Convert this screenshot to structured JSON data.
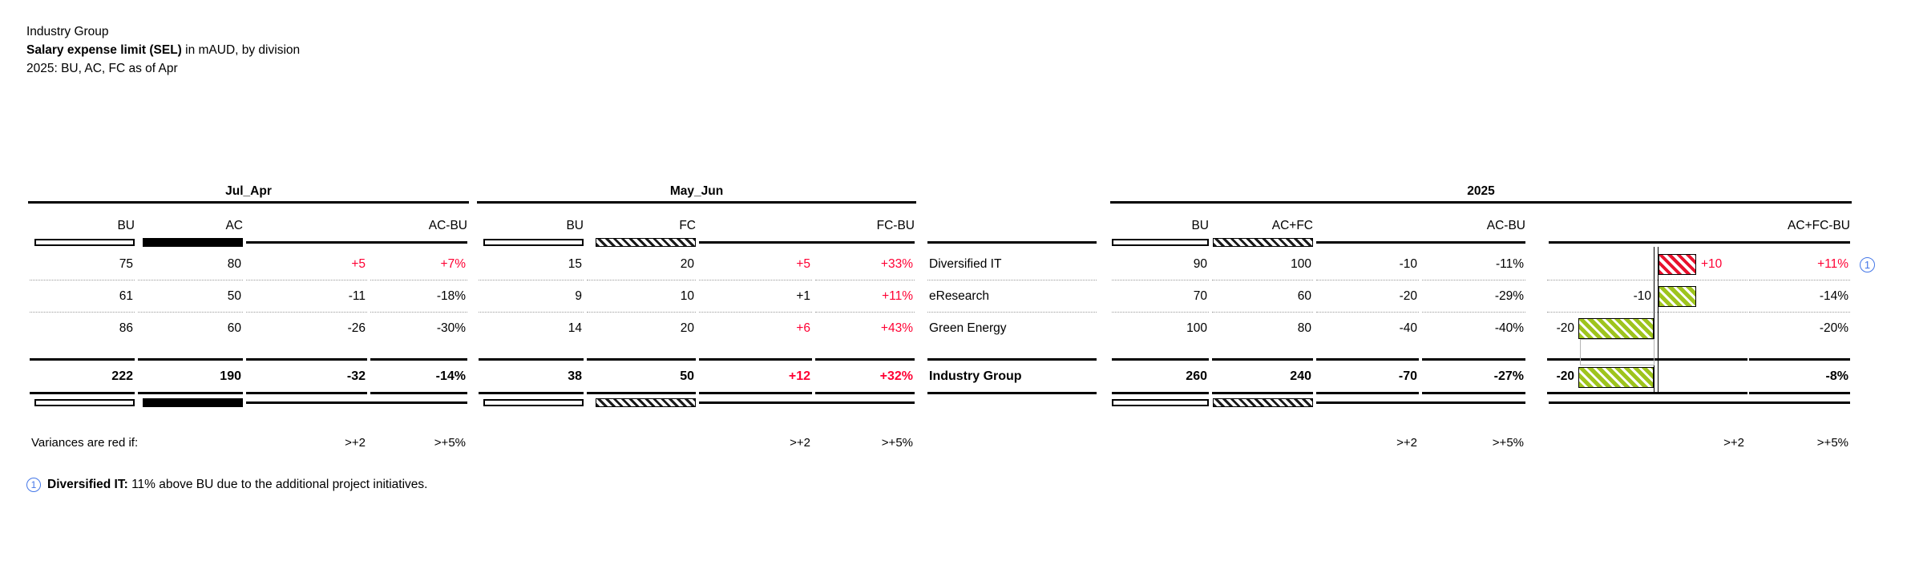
{
  "title": {
    "line1": "Industry Group",
    "line2_bold": "Salary expense limit (SEL)",
    "line2_rest": " in mAUD, by division",
    "line3": "2025: BU, AC, FC as of Apr"
  },
  "header": {
    "jul_apr": {
      "group": "Jul_Apr",
      "bu": "BU",
      "ac": "AC",
      "var": "AC-BU"
    },
    "may_jun": {
      "group": "May_Jun",
      "bu": "BU",
      "fc": "FC",
      "var": "FC-BU"
    },
    "year": {
      "group": "2025",
      "bu": "BU",
      "acfc": "AC+FC",
      "var_abs": "AC-BU",
      "var_chart": "AC+FC-BU"
    }
  },
  "rows": [
    {
      "division": "Diversified IT",
      "ja": {
        "bu": "75",
        "ac": "80",
        "var": "+5",
        "pct": "+7%"
      },
      "mj": {
        "bu": "15",
        "fc": "20",
        "var": "+5",
        "pct": "+33%"
      },
      "yr": {
        "bu": "90",
        "acfc": "100",
        "var": "-10",
        "pct": "-11%"
      },
      "chart": {
        "label": "+10",
        "pct": "+11%"
      }
    },
    {
      "division": "eResearch",
      "ja": {
        "bu": "61",
        "ac": "50",
        "var": "-11",
        "pct": "-18%"
      },
      "mj": {
        "bu": "9",
        "fc": "10",
        "var": "+1",
        "pct": "+11%"
      },
      "yr": {
        "bu": "70",
        "acfc": "60",
        "var": "-20",
        "pct": "-29%"
      },
      "chart": {
        "label": "-10",
        "pct": "-14%"
      }
    },
    {
      "division": "Green Energy",
      "ja": {
        "bu": "86",
        "ac": "60",
        "var": "-26",
        "pct": "-30%"
      },
      "mj": {
        "bu": "14",
        "fc": "20",
        "var": "+6",
        "pct": "+43%"
      },
      "yr": {
        "bu": "100",
        "acfc": "80",
        "var": "-40",
        "pct": "-40%"
      },
      "chart": {
        "label": "-20",
        "pct": "-20%"
      }
    }
  ],
  "total": {
    "division": "Industry Group",
    "ja": {
      "bu": "222",
      "ac": "190",
      "var": "-32",
      "pct": "-14%"
    },
    "mj": {
      "bu": "38",
      "fc": "50",
      "var": "+12",
      "pct": "+32%"
    },
    "yr": {
      "bu": "260",
      "acfc": "240",
      "var": "-70",
      "pct": "-27%"
    },
    "chart": {
      "label": "-20",
      "pct": "-8%"
    }
  },
  "chart_bars": [
    {
      "value": 10,
      "side": "right",
      "color": "red"
    },
    {
      "value": -10,
      "side": "right",
      "color": "green"
    },
    {
      "value": -20,
      "side": "left",
      "color": "green"
    },
    {
      "value": -20,
      "side": "left",
      "color": "green"
    }
  ],
  "thresholds": {
    "label": "Variances are red if:",
    "abs": ">+2",
    "pct": ">+5%"
  },
  "footnote": {
    "marker": "1",
    "bold": "Diversified IT:",
    "rest": " 11% above BU due to the additional project initiatives."
  },
  "info_marker": "1",
  "colors": {
    "variance_red": "#ff0033",
    "bar_green": "#9ec41d",
    "bar_red": "#e8112d",
    "info_blue": "#4477e8"
  },
  "chart_data": {
    "type": "table",
    "title": "Salary expense limit (SEL) in mAUD, by division",
    "report_entity": "Industry Group",
    "subtitle": "2025: BU, AC, FC as of Apr",
    "unit": "mAUD",
    "categories": [
      "Diversified IT",
      "eResearch",
      "Green Energy",
      "Industry Group"
    ],
    "series": [
      {
        "name": "Jul_Apr BU",
        "values": [
          75,
          61,
          86,
          222
        ]
      },
      {
        "name": "Jul_Apr AC",
        "values": [
          80,
          50,
          60,
          190
        ]
      },
      {
        "name": "Jul_Apr AC-BU",
        "values": [
          5,
          -11,
          -26,
          -32
        ]
      },
      {
        "name": "Jul_Apr AC-BU %",
        "values": [
          "+7%",
          "-18%",
          "-30%",
          "-14%"
        ]
      },
      {
        "name": "May_Jun BU",
        "values": [
          15,
          9,
          14,
          38
        ]
      },
      {
        "name": "May_Jun FC",
        "values": [
          20,
          10,
          20,
          50
        ]
      },
      {
        "name": "May_Jun FC-BU",
        "values": [
          5,
          1,
          6,
          12
        ]
      },
      {
        "name": "May_Jun FC-BU %",
        "values": [
          "+33%",
          "+11%",
          "+43%",
          "+32%"
        ]
      },
      {
        "name": "2025 BU",
        "values": [
          90,
          70,
          100,
          260
        ]
      },
      {
        "name": "2025 AC+FC",
        "values": [
          100,
          60,
          80,
          240
        ]
      },
      {
        "name": "2025 AC-BU",
        "values": [
          -10,
          -20,
          -40,
          -70
        ]
      },
      {
        "name": "2025 AC-BU %",
        "values": [
          "-11%",
          "-29%",
          "-40%",
          "-27%"
        ]
      },
      {
        "name": "2025 AC+FC-BU (bar chart)",
        "values": [
          10,
          -10,
          -20,
          -20
        ]
      },
      {
        "name": "2025 AC+FC-BU %",
        "values": [
          "+11%",
          "-14%",
          "-20%",
          "-8%"
        ]
      }
    ],
    "embedded_bar_chart": {
      "type": "bar",
      "orientation": "horizontal",
      "values": [
        10,
        -10,
        -20,
        -20
      ],
      "red_above_threshold": true
    },
    "red_rule": "variances are red if >+2 absolute or >+5%"
  }
}
